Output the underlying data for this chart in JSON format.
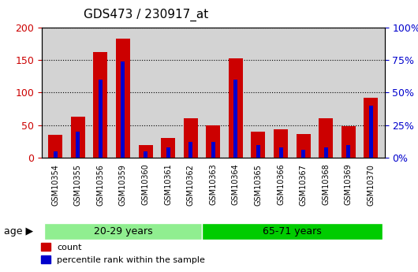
{
  "title": "GDS473 / 230917_at",
  "samples": [
    "GSM10354",
    "GSM10355",
    "GSM10356",
    "GSM10359",
    "GSM10360",
    "GSM10361",
    "GSM10362",
    "GSM10363",
    "GSM10364",
    "GSM10365",
    "GSM10366",
    "GSM10367",
    "GSM10368",
    "GSM10369",
    "GSM10370"
  ],
  "count_values": [
    35,
    63,
    162,
    182,
    20,
    30,
    60,
    50,
    152,
    40,
    43,
    36,
    60,
    49,
    92
  ],
  "percentile_values": [
    5,
    20,
    60,
    74,
    5,
    8,
    12,
    12,
    60,
    10,
    8,
    6,
    8,
    10,
    40
  ],
  "groups": [
    {
      "label": "20-29 years",
      "start": 0,
      "end": 7,
      "color": "#90EE90"
    },
    {
      "label": "65-71 years",
      "start": 7,
      "end": 15,
      "color": "#00CC00"
    }
  ],
  "age_label": "age",
  "count_color": "#CC0000",
  "percentile_color": "#0000CC",
  "ylim_left": [
    0,
    200
  ],
  "ylim_right": [
    0,
    100
  ],
  "yticks_left": [
    0,
    50,
    100,
    150,
    200
  ],
  "yticks_right": [
    0,
    25,
    50,
    75,
    100
  ],
  "ytick_labels_left": [
    "0",
    "50",
    "100",
    "150",
    "200"
  ],
  "ytick_labels_right": [
    "0%",
    "25%",
    "50%",
    "75%",
    "100%"
  ],
  "legend_count": "count",
  "legend_percentile": "percentile rank within the sample",
  "bar_width": 0.35,
  "axis_bg_color": "#D3D3D3",
  "plot_bg_color": "#FFFFFF",
  "grid_color": "#000000"
}
